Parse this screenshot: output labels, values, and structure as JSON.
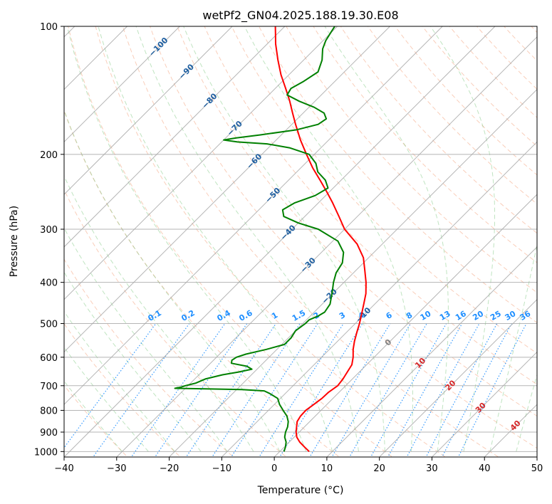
{
  "chart_data": {
    "type": "line",
    "subtype": "skew-t-log-p",
    "title": "wetPf2_GN04.2025.188.19.30.E08",
    "xlabel": "Temperature (°C)",
    "ylabel": "Pressure (hPa)",
    "xlim": [
      -40,
      50
    ],
    "ylim": [
      1030,
      100
    ],
    "y_scale": "log",
    "x_ticks": [
      "−40",
      "−30",
      "−20",
      "−10",
      "0",
      "10",
      "20",
      "30",
      "40",
      "50"
    ],
    "y_ticks": [
      {
        "p": 100,
        "label": "100"
      },
      {
        "p": 200,
        "label": "200"
      },
      {
        "p": 300,
        "label": "300"
      },
      {
        "p": 400,
        "label": "400"
      },
      {
        "p": 500,
        "label": "500"
      },
      {
        "p": 600,
        "label": "600"
      },
      {
        "p": 700,
        "label": "700"
      },
      {
        "p": 800,
        "label": "800"
      },
      {
        "p": 900,
        "label": "900"
      },
      {
        "p": 1000,
        "label": "1000"
      }
    ],
    "grid": true,
    "colors": {
      "temperature": "#ff0000",
      "dewpoint": "#008000",
      "isotherm": "#a9a9a9",
      "dry_adiabat": "#f4a582",
      "moist_adiabat": "#74c476",
      "mixing_ratio": "#1f8fff",
      "mixing_ratio_label": "#1f8fff",
      "dry_label": "#1f5fa0",
      "moist_label": "#d62728",
      "zero_label": "#808080"
    },
    "series": [
      {
        "key": "temperature",
        "points": [
          [
            1000,
            5.6
          ],
          [
            975,
            3.8
          ],
          [
            950,
            2.0
          ],
          [
            925,
            0.5
          ],
          [
            900,
            -0.6
          ],
          [
            875,
            -1.5
          ],
          [
            850,
            -2.4
          ],
          [
            825,
            -2.8
          ],
          [
            800,
            -2.9
          ],
          [
            775,
            -2.5
          ],
          [
            750,
            -2.1
          ],
          [
            725,
            -2.0
          ],
          [
            700,
            -1.5
          ],
          [
            675,
            -1.8
          ],
          [
            650,
            -2.3
          ],
          [
            625,
            -2.8
          ],
          [
            600,
            -4.0
          ],
          [
            575,
            -5.5
          ],
          [
            550,
            -6.8
          ],
          [
            525,
            -8.0
          ],
          [
            500,
            -9.2
          ],
          [
            475,
            -10.6
          ],
          [
            450,
            -12.1
          ],
          [
            425,
            -13.7
          ],
          [
            400,
            -15.8
          ],
          [
            375,
            -18.3
          ],
          [
            350,
            -21.0
          ],
          [
            325,
            -24.8
          ],
          [
            300,
            -30.0
          ],
          [
            280,
            -33.5
          ],
          [
            260,
            -37.3
          ],
          [
            245,
            -40.5
          ],
          [
            230,
            -44.0
          ],
          [
            215,
            -47.8
          ],
          [
            200,
            -51.5
          ],
          [
            185,
            -55.4
          ],
          [
            170,
            -59.3
          ],
          [
            160,
            -62.0
          ],
          [
            150,
            -64.8
          ],
          [
            140,
            -68.0
          ],
          [
            130,
            -71.5
          ],
          [
            120,
            -74.9
          ],
          [
            110,
            -78.4
          ],
          [
            104,
            -80.4
          ],
          [
            100,
            -81.8
          ]
        ]
      },
      {
        "key": "dewpoint",
        "points": [
          [
            1000,
            0.8
          ],
          [
            975,
            0.2
          ],
          [
            950,
            -0.6
          ],
          [
            925,
            -1.8
          ],
          [
            900,
            -2.6
          ],
          [
            875,
            -3.2
          ],
          [
            850,
            -4.1
          ],
          [
            825,
            -5.4
          ],
          [
            800,
            -7.2
          ],
          [
            775,
            -9.0
          ],
          [
            750,
            -10.5
          ],
          [
            730,
            -13.0
          ],
          [
            720,
            -14.5
          ],
          [
            715,
            -19.0
          ],
          [
            712,
            -26.0
          ],
          [
            710,
            -32.0
          ],
          [
            705,
            -31.0
          ],
          [
            700,
            -30.5
          ],
          [
            690,
            -29.0
          ],
          [
            675,
            -28.0
          ],
          [
            660,
            -25.5
          ],
          [
            650,
            -23.0
          ],
          [
            640,
            -21.0
          ],
          [
            630,
            -22.5
          ],
          [
            620,
            -26.0
          ],
          [
            610,
            -26.5
          ],
          [
            600,
            -26.2
          ],
          [
            590,
            -25.0
          ],
          [
            575,
            -22.0
          ],
          [
            560,
            -19.5
          ],
          [
            540,
            -19.5
          ],
          [
            520,
            -20.0
          ],
          [
            500,
            -19.5
          ],
          [
            490,
            -19.5
          ],
          [
            480,
            -18.5
          ],
          [
            470,
            -18.0
          ],
          [
            450,
            -18.5
          ],
          [
            420,
            -20.5
          ],
          [
            400,
            -22.0
          ],
          [
            380,
            -23.3
          ],
          [
            360,
            -24.0
          ],
          [
            340,
            -25.8
          ],
          [
            320,
            -29.0
          ],
          [
            300,
            -35.0
          ],
          [
            290,
            -40.0
          ],
          [
            280,
            -44.0
          ],
          [
            270,
            -45.5
          ],
          [
            260,
            -44.5
          ],
          [
            250,
            -42.0
          ],
          [
            240,
            -41.0
          ],
          [
            230,
            -43.0
          ],
          [
            220,
            -46.0
          ],
          [
            210,
            -48.0
          ],
          [
            200,
            -51.0
          ],
          [
            193,
            -56.0
          ],
          [
            189,
            -61.0
          ],
          [
            187,
            -67.0
          ],
          [
            185,
            -70.0
          ],
          [
            183,
            -68.0
          ],
          [
            180,
            -64.0
          ],
          [
            175,
            -58.0
          ],
          [
            170,
            -55.0
          ],
          [
            165,
            -54.5
          ],
          [
            160,
            -56.0
          ],
          [
            155,
            -59.0
          ],
          [
            150,
            -63.0
          ],
          [
            145,
            -66.5
          ],
          [
            140,
            -67.0
          ],
          [
            135,
            -66.0
          ],
          [
            128,
            -65.0
          ],
          [
            120,
            -66.5
          ],
          [
            113,
            -68.5
          ],
          [
            108,
            -69.5
          ],
          [
            104,
            -70.0
          ],
          [
            100,
            -70.5
          ]
        ]
      }
    ],
    "dry_adiabat_labels": [
      "−100",
      "−90",
      "−80",
      "−70",
      "−60",
      "−50",
      "−40",
      "−30",
      "−20",
      "−10"
    ],
    "dry_adiabat_label_values": [
      -100,
      -90,
      -80,
      -70,
      -60,
      -50,
      -40,
      -30,
      -20,
      -10
    ],
    "moist_adiabat_labels": [
      "0",
      "10",
      "20",
      "30",
      "40"
    ],
    "moist_adiabat_label_values": [
      0,
      10,
      20,
      30,
      40
    ],
    "mixing_ratio_labels": [
      "0.1",
      "0.2",
      "0.4",
      "0.6",
      "1",
      "1.5",
      "2",
      "3",
      "4",
      "6",
      "8",
      "10",
      "13",
      "16",
      "20",
      "25",
      "30",
      "36"
    ],
    "mixing_ratio_values": [
      0.1,
      0.2,
      0.4,
      0.6,
      1,
      1.5,
      2,
      3,
      4,
      6,
      8,
      10,
      13,
      16,
      20,
      25,
      30,
      36
    ]
  }
}
